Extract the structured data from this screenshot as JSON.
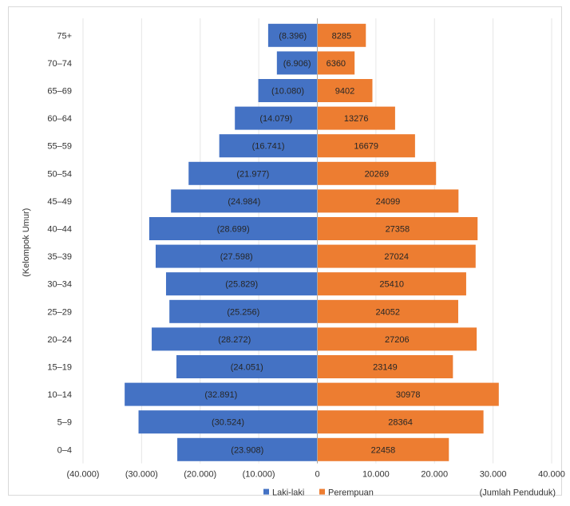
{
  "chart_data": {
    "type": "bar",
    "orientation": "horizontal",
    "variant": "population-pyramid",
    "categories": [
      "75+",
      "70–74",
      "65–69",
      "60–64",
      "55–59",
      "50–54",
      "45–49",
      "40–44",
      "35–39",
      "30–34",
      "25–29",
      "20–24",
      "15–19",
      "10–14",
      "5–9",
      "0–4"
    ],
    "series": [
      {
        "name": "Laki-laki",
        "color": "#4472C4",
        "values": [
          -8396,
          -6906,
          -10080,
          -14079,
          -16741,
          -21977,
          -24984,
          -28699,
          -27598,
          -25829,
          -25256,
          -28272,
          -24051,
          -32891,
          -30524,
          -23908
        ],
        "labels": [
          "(8.396)",
          "(6.906)",
          "(10.080)",
          "(14.079)",
          "(16.741)",
          "(21.977)",
          "(24.984)",
          "(28.699)",
          "(27.598)",
          "(25.829)",
          "(25.256)",
          "(28.272)",
          "(24.051)",
          "(32.891)",
          "(30.524)",
          "(23.908)"
        ]
      },
      {
        "name": "Perempuan",
        "color": "#ED7D31",
        "values": [
          8285,
          6360,
          9402,
          13276,
          16679,
          20269,
          24099,
          27358,
          27024,
          25410,
          24052,
          27206,
          23149,
          30978,
          28364,
          22458
        ],
        "labels": [
          "8285",
          "6360",
          "9402",
          "13276",
          "16679",
          "20269",
          "24099",
          "27358",
          "27024",
          "25410",
          "24052",
          "27206",
          "23149",
          "30978",
          "28364",
          "22458"
        ]
      }
    ],
    "xlim": [
      -40000,
      40000
    ],
    "xticks": [
      -40000,
      -30000,
      -20000,
      -10000,
      0,
      10000,
      20000,
      30000,
      40000
    ],
    "xtick_labels": [
      "(40.000)",
      "(30.000)",
      "(20.000)",
      "(10.000)",
      "0",
      "10.000",
      "20.000",
      "30.000",
      "40.000"
    ],
    "xlabel": "(Jumlah Penduduk)",
    "ylabel": "(Kelompok Umur)",
    "grid": true,
    "legend": "bottom"
  }
}
